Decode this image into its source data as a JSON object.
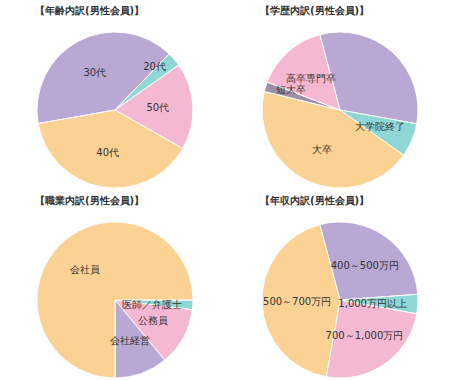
{
  "chart_data": [
    {
      "type": "pie",
      "title": "【年齢内訳(男性会員)】",
      "categories": [
        "30代",
        "20代",
        "50代",
        "40代"
      ],
      "values": [
        40,
        3,
        18,
        39
      ],
      "colors": [
        "#b9a8d3",
        "#8fd6d6",
        "#f5b8d2",
        "#fcd294"
      ]
    },
    {
      "type": "pie",
      "title": "【学歴内訳(男性会員)】",
      "categories": [
        null,
        "大学院終了",
        "大卒",
        "短大卒",
        "高卒専門卒"
      ],
      "values": [
        32,
        7,
        44,
        2,
        15
      ],
      "colors": [
        "#b9a8d3",
        "#8fd6d6",
        "#fcd294",
        "#9f8fa6",
        "#f5b8d2"
      ]
    },
    {
      "type": "pie",
      "title": "【職業内訳(男性会員)】",
      "categories": [
        "医師／弁護士",
        "公務員",
        "会社経営",
        "会社員"
      ],
      "values": [
        2,
        12,
        11,
        75
      ],
      "colors": [
        "#8fd6d6",
        "#f5b8d2",
        "#b9a8d3",
        "#fcd294"
      ]
    },
    {
      "type": "pie",
      "title": "【年収内訳(男性会員)】",
      "categories": [
        "400～500万円",
        "1,000万円以上",
        "700～1,000万円",
        "500～700万円"
      ],
      "values": [
        28,
        4,
        25,
        43
      ],
      "colors": [
        "#b9a8d3",
        "#8fd6d6",
        "#f5b8d2",
        "#fcd294"
      ]
    }
  ]
}
